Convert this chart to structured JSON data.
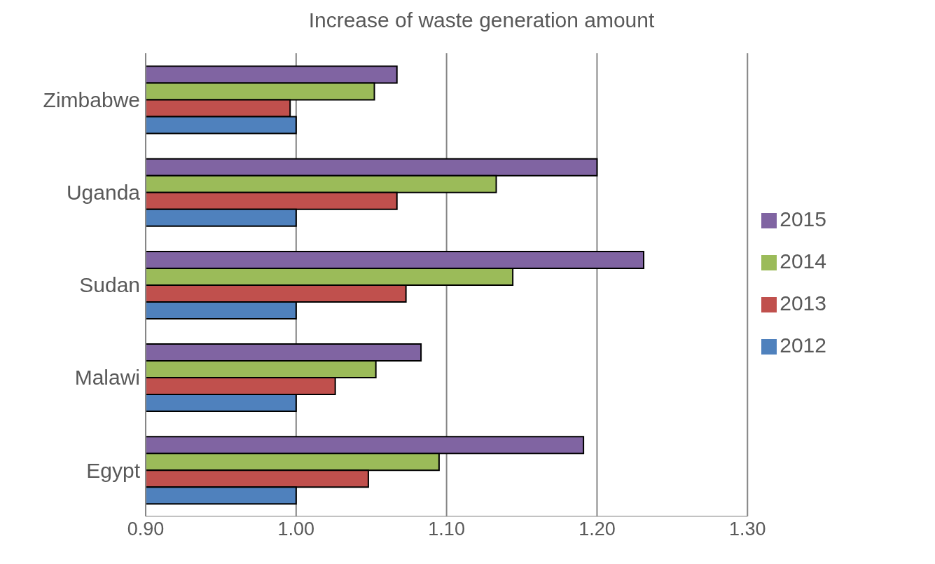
{
  "chart_data": {
    "type": "bar",
    "orientation": "horizontal",
    "title": "Increase of waste generation amount",
    "categories": [
      "Zimbabwe",
      "Uganda",
      "Sudan",
      "Malawi",
      "Egypt"
    ],
    "series": [
      {
        "name": "2015",
        "color": "#8064a2",
        "values": [
          1.067,
          1.2,
          1.231,
          1.083,
          1.191
        ]
      },
      {
        "name": "2014",
        "color": "#9bbb59",
        "values": [
          1.052,
          1.133,
          1.144,
          1.053,
          1.095
        ]
      },
      {
        "name": "2013",
        "color": "#c0504d",
        "values": [
          0.996,
          1.067,
          1.073,
          1.026,
          1.048
        ]
      },
      {
        "name": "2012",
        "color": "#4f81bd",
        "values": [
          1.0,
          1.0,
          1.0,
          1.0,
          1.0
        ]
      }
    ],
    "xlim": [
      0.9,
      1.3
    ],
    "xticks": [
      {
        "value": 0.9,
        "label": "0.90"
      },
      {
        "value": 1.0,
        "label": "1.00"
      },
      {
        "value": 1.1,
        "label": "1.10"
      },
      {
        "value": 1.2,
        "label": "1.20"
      },
      {
        "value": 1.3,
        "label": "1.30"
      }
    ],
    "grid": "x",
    "legend": "right"
  }
}
